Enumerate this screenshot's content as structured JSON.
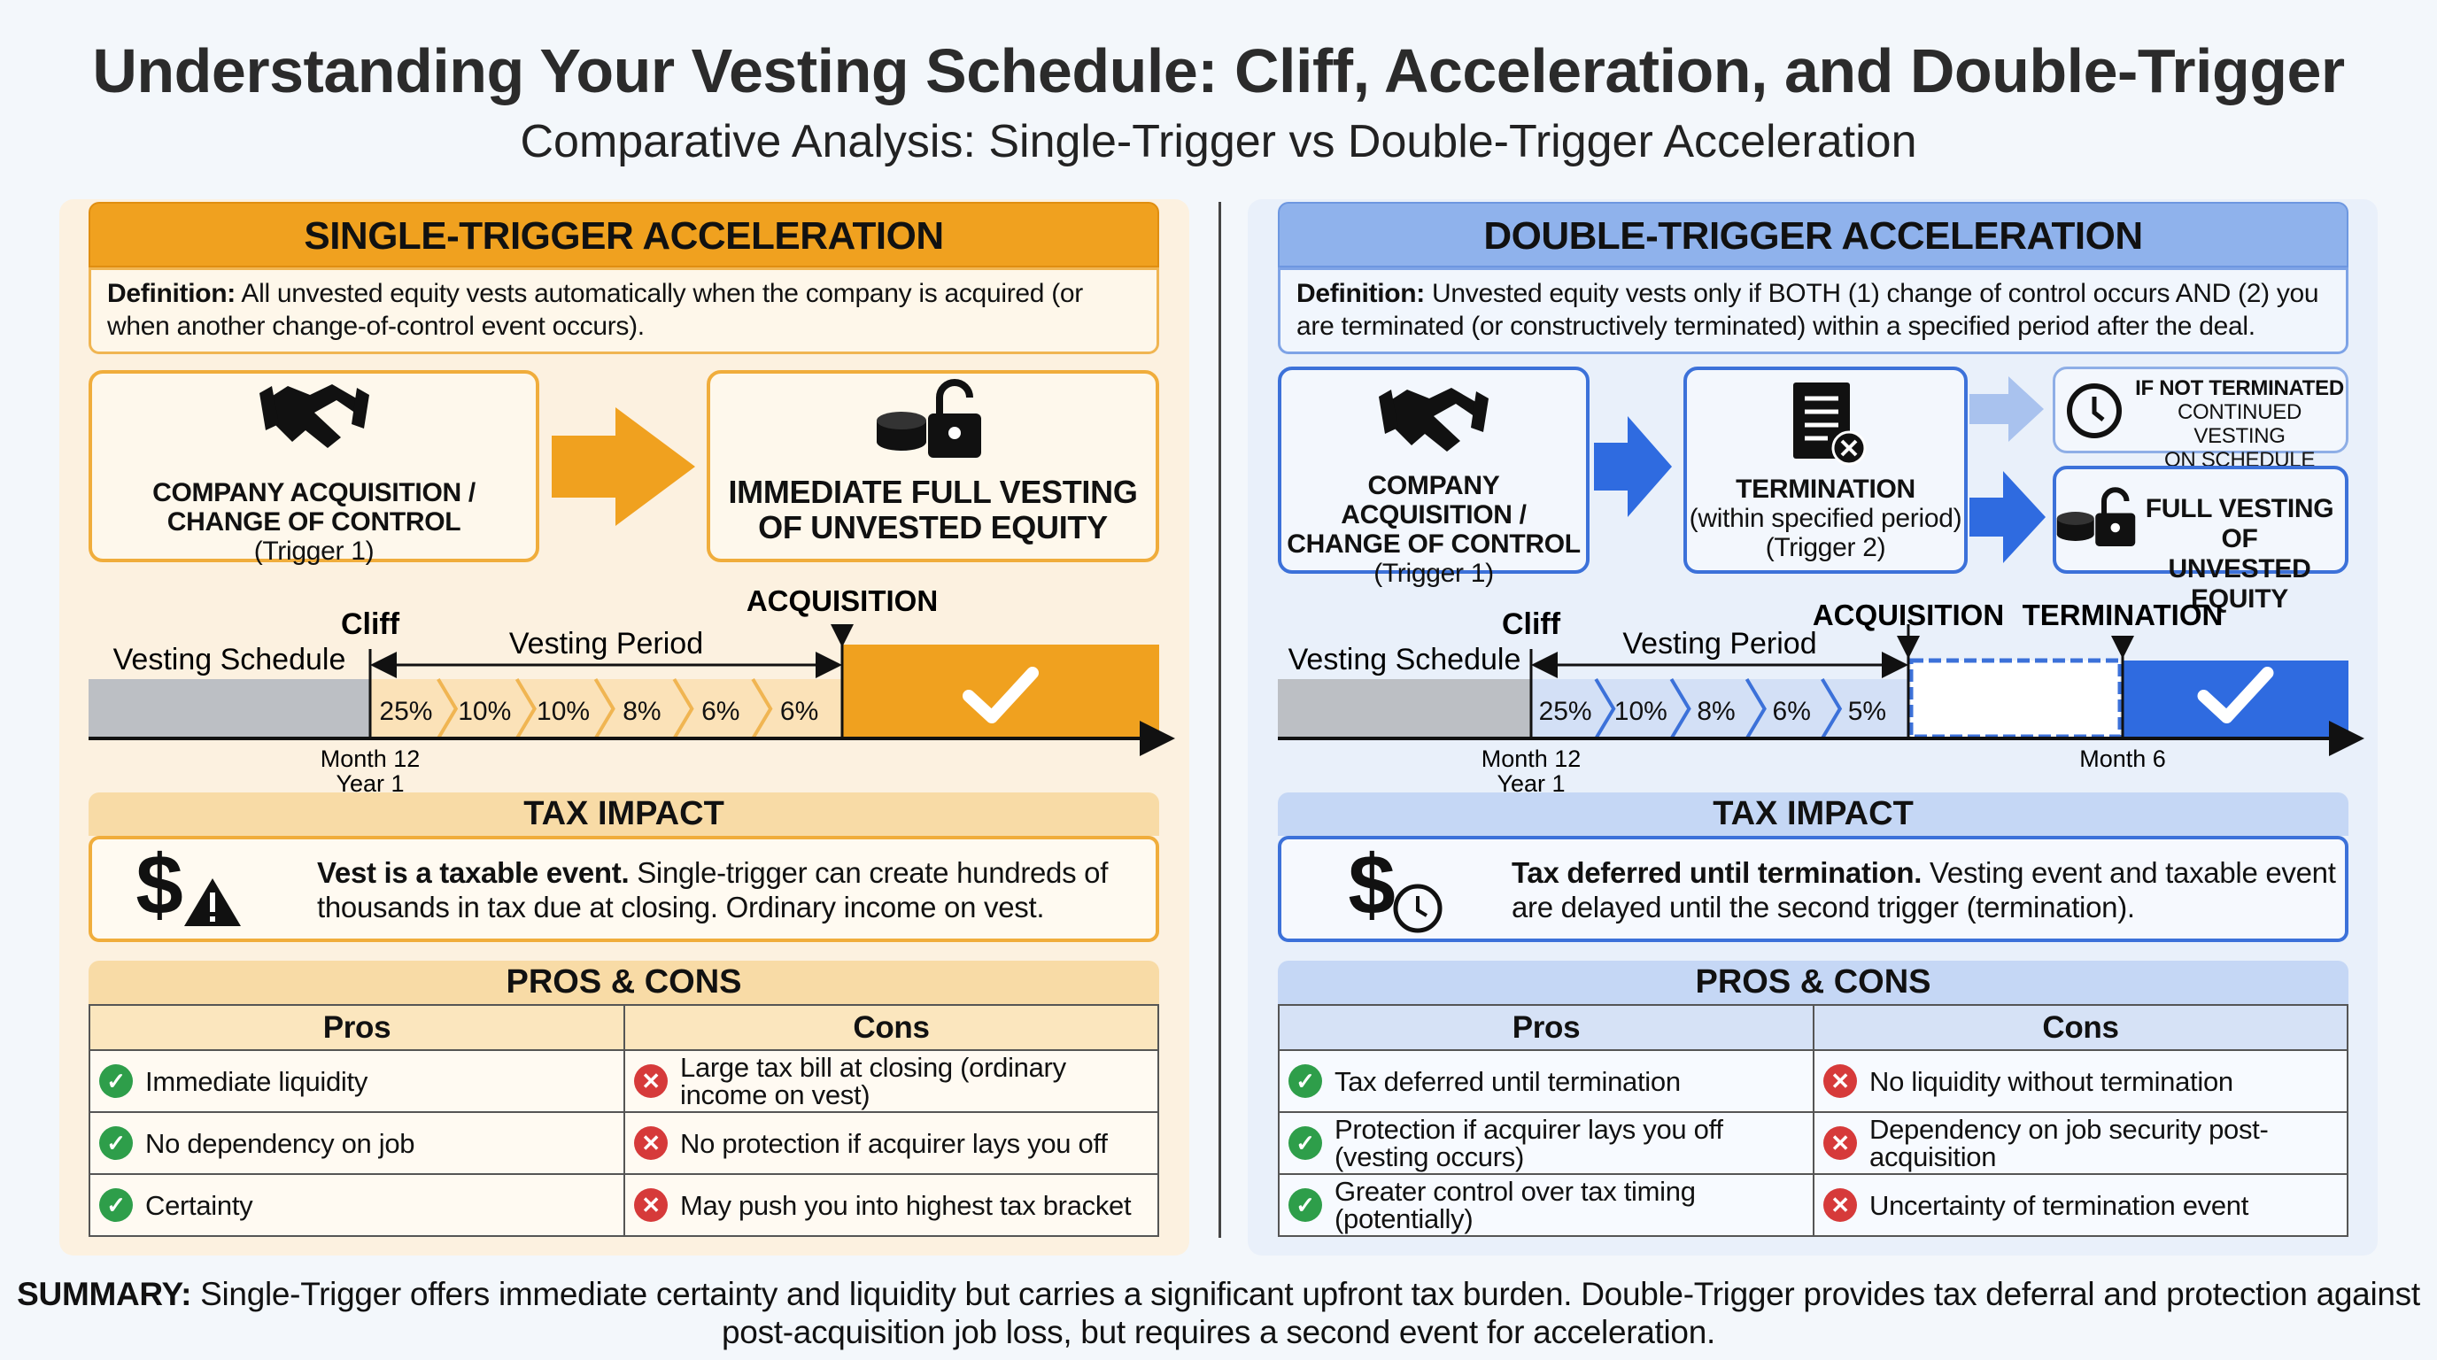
{
  "title": "Understanding Your Vesting Schedule: Cliff, Acceleration, and Double-Trigger",
  "subtitle": "Comparative Analysis: Single-Trigger vs Double-Trigger Acceleration",
  "colors": {
    "single_accent": "#f0a11f",
    "double_accent": "#2f6be0",
    "double_header": "#8fb2ec",
    "pro": "#2e9e4a",
    "con": "#d63a3a"
  },
  "single": {
    "header": "SINGLE-TRIGGER ACCELERATION",
    "definition_label": "Definition:",
    "definition_text": " All unvested equity vests automatically when the company is acquired (or when another change-of-control event occurs).",
    "trigger1": {
      "line1": "COMPANY ACQUISITION /",
      "line2": "CHANGE OF CONTROL",
      "line3": "(Trigger 1)",
      "icon": "handshake-icon"
    },
    "result": {
      "line1": "IMMEDIATE FULL VESTING",
      "line2": "OF UNVESTED EQUITY",
      "icon": "coins-unlock-icon"
    },
    "timeline": {
      "schedule_label": "Vesting Schedule",
      "cliff_label": "Cliff",
      "period_label": "Vesting Period",
      "event_label": "ACQUISITION",
      "month_label": "Month 12",
      "year_label": "Year 1",
      "tranches": [
        "25%",
        "10%",
        "10%",
        "8%",
        "6%",
        "6%"
      ]
    },
    "tax": {
      "header": "TAX IMPACT",
      "bold": "Vest is a taxable event.",
      "text": " Single-trigger can create hundreds of thousands in tax due at closing. Ordinary income on vest.",
      "icon": "dollar-warning-icon"
    },
    "proscons": {
      "header": "PROS & CONS",
      "pros_label": "Pros",
      "cons_label": "Cons",
      "pros": [
        "Immediate liquidity",
        "No dependency on job",
        "Certainty"
      ],
      "cons": [
        "Large tax bill at closing (ordinary income on vest)",
        "No protection if acquirer lays you off",
        "May push you into highest tax bracket"
      ]
    }
  },
  "double": {
    "header": "DOUBLE-TRIGGER ACCELERATION",
    "definition_label": "Definition:",
    "definition_text": " Unvested equity vests only if BOTH (1) change of control occurs AND (2) you are terminated (or constructively terminated) within a specified period after the deal.",
    "trigger1": {
      "line1": "COMPANY ACQUISITION /",
      "line2": "CHANGE OF CONTROL",
      "line3": "(Trigger 1)",
      "icon": "handshake-icon"
    },
    "trigger2": {
      "line1": "TERMINATION",
      "line2": "(within specified period)",
      "line3": "(Trigger 2)",
      "icon": "document-x-icon"
    },
    "not_terminated": {
      "line1": "IF NOT TERMINATED",
      "line2": "CONTINUED VESTING",
      "line3": "ON SCHEDULE",
      "icon": "clock-icon"
    },
    "result": {
      "line1": "FULL VESTING OF",
      "line2": "UNVESTED EQUITY",
      "icon": "coins-unlock-icon"
    },
    "timeline": {
      "schedule_label": "Vesting Schedule",
      "cliff_label": "Cliff",
      "period_label": "Vesting Period",
      "event_label": "ACQUISITION",
      "event2_label": "TERMINATION",
      "month_label": "Month 12",
      "year_label": "Year 1",
      "month2_label": "Month 6",
      "tranches": [
        "25%",
        "10%",
        "8%",
        "6%",
        "5%"
      ]
    },
    "tax": {
      "header": "TAX IMPACT",
      "bold": "Tax deferred until termination.",
      "text": " Vesting event and taxable event are delayed until the second trigger (termination).",
      "icon": "dollar-clock-icon"
    },
    "proscons": {
      "header": "PROS & CONS",
      "pros_label": "Pros",
      "cons_label": "Cons",
      "pros": [
        "Tax deferred until termination",
        "Protection if acquirer lays you off (vesting occurs)",
        "Greater control over tax timing (potentially)"
      ],
      "cons": [
        "No liquidity without termination",
        "Dependency on job security post-acquisition",
        "Uncertainty of termination event"
      ]
    }
  },
  "summary": {
    "label": "SUMMARY:",
    "text": " Single-Trigger offers immediate certainty and liquidity but carries a significant upfront tax burden. Double-Trigger provides tax deferral and protection against post-acquisition job loss, but requires a second event for acceleration."
  }
}
